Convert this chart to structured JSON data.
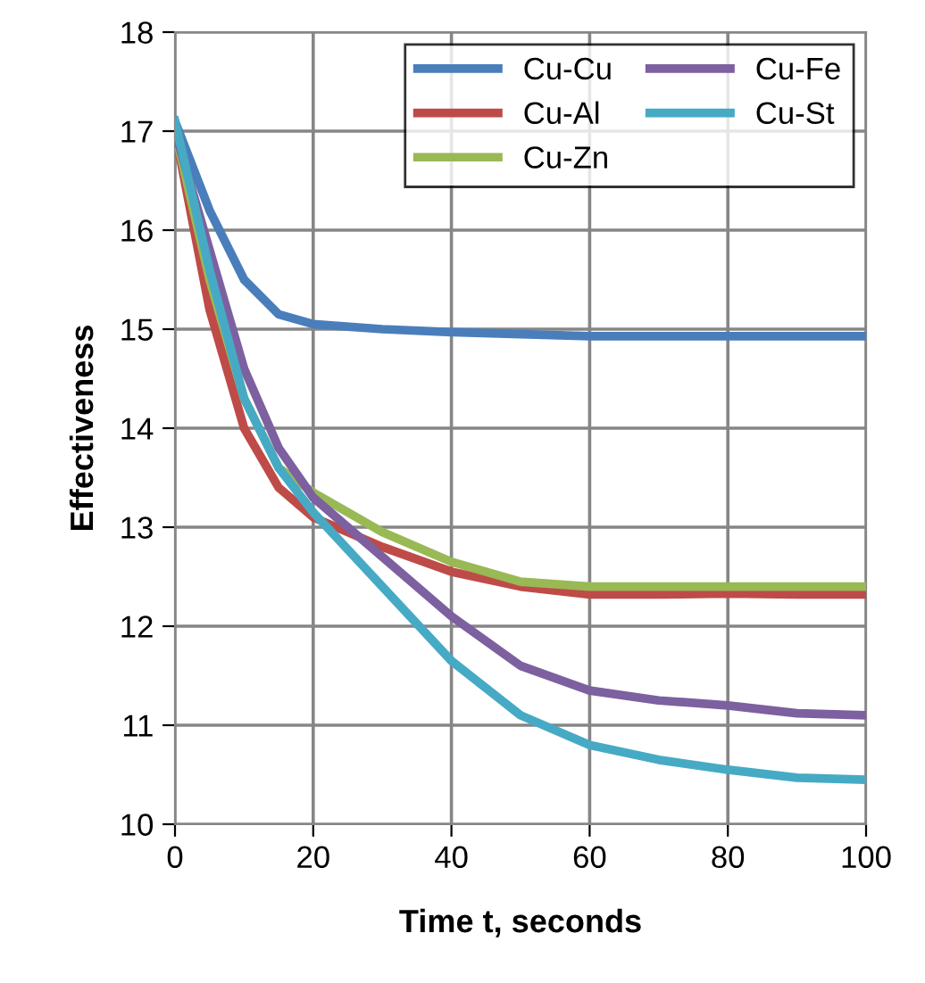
{
  "chart_data": {
    "type": "line",
    "xlabel": "Time t, seconds",
    "ylabel": "Effectiveness",
    "x": [
      0,
      5,
      10,
      15,
      20,
      30,
      40,
      50,
      60,
      70,
      80,
      90,
      100
    ],
    "xlim": [
      0,
      100
    ],
    "xticks": [
      0,
      20,
      40,
      60,
      80,
      100
    ],
    "ylim": [
      10,
      18
    ],
    "yticks": [
      10,
      11,
      12,
      13,
      14,
      15,
      16,
      17,
      18
    ],
    "grid": true,
    "legend": "top right",
    "marker": "none",
    "line_style": "solid",
    "series": [
      {
        "name": "Cu-Cu",
        "color": "#4a7ebb",
        "values": [
          17.1,
          16.2,
          15.5,
          15.15,
          15.05,
          15.0,
          14.97,
          14.95,
          14.93,
          14.93,
          14.93,
          14.93,
          14.93
        ]
      },
      {
        "name": "Cu-Al",
        "color": "#be4b48",
        "values": [
          17.0,
          15.2,
          14.0,
          13.4,
          13.1,
          12.8,
          12.55,
          12.4,
          12.32,
          12.32,
          12.33,
          12.32,
          12.32
        ]
      },
      {
        "name": "Cu-Zn",
        "color": "#98b954",
        "values": [
          17.0,
          15.5,
          14.3,
          13.6,
          13.35,
          12.95,
          12.65,
          12.45,
          12.4,
          12.4,
          12.4,
          12.4,
          12.4
        ]
      },
      {
        "name": "Cu-Fe",
        "color": "#7d60a0",
        "values": [
          17.0,
          15.8,
          14.6,
          13.8,
          13.3,
          12.7,
          12.1,
          11.6,
          11.35,
          11.25,
          11.2,
          11.12,
          11.1
        ]
      },
      {
        "name": "Cu-St",
        "color": "#46aac5",
        "values": [
          17.1,
          15.6,
          14.3,
          13.6,
          13.15,
          12.4,
          11.65,
          11.1,
          10.8,
          10.65,
          10.55,
          10.47,
          10.45
        ]
      }
    ]
  }
}
